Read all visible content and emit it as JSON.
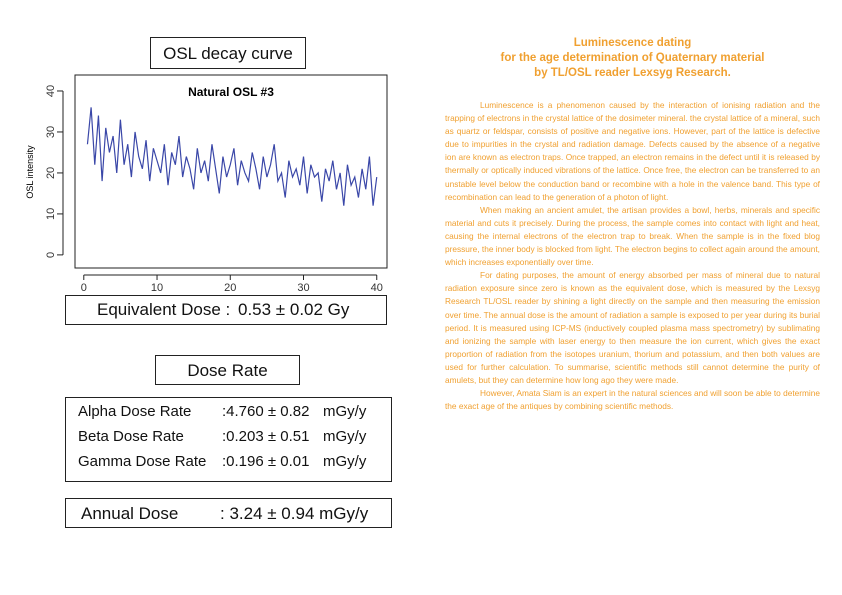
{
  "osl_heading": "OSL decay curve",
  "chart_data": {
    "type": "line",
    "title": "Natural OSL #3",
    "y_label": "OSL intensity",
    "color": "#3a47a8",
    "x": [
      0.5,
      1,
      1.5,
      2,
      2.5,
      3,
      3.5,
      4,
      4.5,
      5,
      5.5,
      6,
      6.5,
      7,
      7.5,
      8,
      8.5,
      9,
      9.5,
      10,
      10.5,
      11,
      11.5,
      12,
      12.5,
      13,
      13.5,
      14,
      14.5,
      15,
      15.5,
      16,
      16.5,
      17,
      17.5,
      18,
      18.5,
      19,
      19.5,
      20,
      20.5,
      21,
      21.5,
      22,
      22.5,
      23,
      23.5,
      24,
      24.5,
      25,
      25.5,
      26,
      26.5,
      27,
      27.5,
      28,
      28.5,
      29,
      29.5,
      30,
      30.5,
      31,
      31.5,
      32,
      32.5,
      33,
      33.5,
      34,
      34.5,
      35,
      35.5,
      36,
      36.5,
      37,
      37.5,
      38,
      38.5,
      39,
      39.5,
      40
    ],
    "values": [
      27,
      36,
      22,
      34,
      18,
      31,
      25,
      29,
      20,
      33,
      22,
      27,
      19,
      30,
      24,
      21,
      28,
      18,
      26,
      23,
      20,
      27,
      17,
      25,
      22,
      29,
      19,
      24,
      21,
      16,
      26,
      20,
      23,
      18,
      27,
      21,
      15,
      24,
      19,
      22,
      26,
      17,
      23,
      20,
      18,
      25,
      21,
      16,
      24,
      19,
      22,
      27,
      18,
      20,
      14,
      23,
      19,
      21,
      17,
      24,
      15,
      22,
      19,
      20,
      13,
      21,
      18,
      23,
      16,
      20,
      12,
      22,
      17,
      19,
      14,
      21,
      16,
      24,
      12,
      19
    ],
    "xlim": [
      -1.2,
      41.4
    ],
    "ylim": [
      -3.2,
      43.9
    ],
    "xticks": [
      0,
      10,
      20,
      30,
      40
    ],
    "yticks": [
      0,
      10,
      20,
      30,
      40
    ]
  },
  "equivalent_dose": {
    "label": "Equivalent Dose :",
    "value": "0.53 ± 0.02 Gy"
  },
  "dose_rate_heading": "Dose Rate",
  "dose_rates": [
    {
      "label": "Alpha Dose Rate",
      "value": ":4.760 ± 0.82",
      "unit": "mGy/y"
    },
    {
      "label": "Beta Dose Rate",
      "value": ":0.203 ± 0.51",
      "unit": "mGy/y"
    },
    {
      "label": "Gamma Dose Rate",
      "value": ":0.196 ± 0.01",
      "unit": "mGy/y"
    }
  ],
  "annual_dose": {
    "label": "Annual Dose",
    "value": ": 3.24 ± 0.94 mGy/y"
  },
  "article": {
    "title": [
      "Luminescence dating",
      "for the age determination of Quaternary material",
      "by TL/OSL reader Lexsyg Research."
    ],
    "paragraphs": [
      "Luminescence is a phenomenon caused by the interaction of ionising radiation and the trapping of electrons in the crystal lattice of the dosimeter mineral. the crystal lattice of a mineral, such as quartz or feldspar, consists of positive and negative ions. However, part of the lattice is defective due to impurities in the crystal and radiation damage. Defects caused by the absence of a negative ion are known as electron traps. Once trapped, an electron remains in the defect until it is released by thermally or optically induced vibrations of the lattice. Once free, the electron can be transferred to an unstable level below the conduction band or recombine with a hole in the valence band. This type of recombination can lead to the generation of a photon of light.",
      "When making an ancient amulet, the artisan provides a bowl, herbs, minerals and specific material and cuts it precisely. During the process, the sample comes into contact with light and heat, causing the internal electrons of the electron trap to break. When the sample is in the fixed blog pressure, the inner body is blocked from light. The electron begins to collect again around the amount, which increases exponentially over time.",
      "For dating purposes, the amount of energy absorbed per mass of mineral due to natural radiation exposure since zero is known as the equivalent dose, which is measured by the Lexsyg Research TL/OSL reader by shining a light directly on the sample and then measuring the emission over time. The annual dose is the amount of radiation a sample is exposed to per year during its burial period. It is measured using ICP-MS (inductively coupled plasma mass spectrometry) by sublimating and ionizing the sample with laser energy to then measure the ion current, which gives the exact proportion of radiation from the isotopes uranium, thorium and potassium, and then both values are used for further calculation. To summarise, scientific methods still cannot determine the purity of amulets, but they can determine how long ago they were made.",
      "However, Amata Siam is an expert in the natural sciences and will soon be able to determine the exact age of the antiques by combining scientific methods."
    ]
  }
}
